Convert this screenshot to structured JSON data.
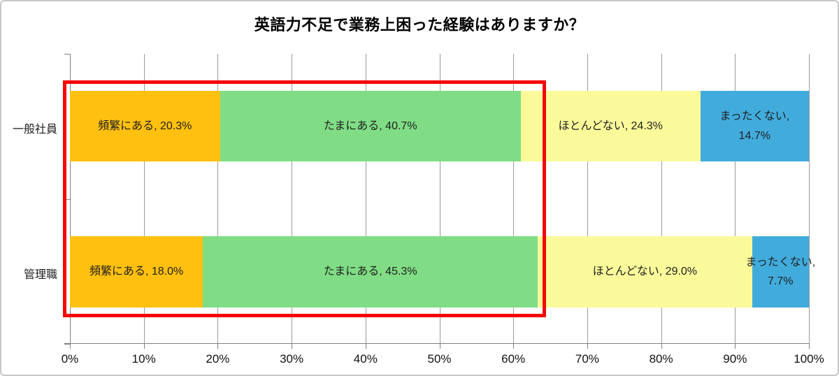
{
  "title": "英語力不足で業務上困った経験はありますか？",
  "colors": {
    "orange": "#ffc010",
    "green": "#80dd85",
    "yellow": "#fafa9b",
    "blue": "#41acdc",
    "highlight_red": "#f40606",
    "gridline": "#9b9b9b",
    "axis": "#808080"
  },
  "chart_data": {
    "type": "bar",
    "orientation": "horizontal",
    "stacked": true,
    "title": "英語力不足で業務上困った経験はありますか？",
    "xlim": [
      0,
      100
    ],
    "grid": true,
    "x_ticks": [
      "0%",
      "10%",
      "20%",
      "30%",
      "40%",
      "50%",
      "60%",
      "70%",
      "80%",
      "90%",
      "100%"
    ],
    "categories": [
      "一般社員",
      "管理職"
    ],
    "legend": "none (labels inside segments)",
    "series": [
      {
        "name": "頻繁にある",
        "color_key": "orange",
        "values": [
          20.3,
          18.0
        ]
      },
      {
        "name": "たまにある",
        "color_key": "green",
        "values": [
          40.7,
          45.3
        ]
      },
      {
        "name": "ほとんどない",
        "color_key": "yellow",
        "values": [
          24.3,
          29.0
        ]
      },
      {
        "name": "まったくない",
        "color_key": "blue",
        "values": [
          14.7,
          7.7
        ]
      }
    ],
    "bars": [
      {
        "category": "一般社員",
        "segments": [
          {
            "name": "頻繁にある",
            "value": 20.3,
            "color_key": "orange",
            "label_lines": [
              "頻繁にある, 20.3%"
            ]
          },
          {
            "name": "たまにある",
            "value": 40.7,
            "color_key": "green",
            "label_lines": [
              "たまにある, 40.7%"
            ]
          },
          {
            "name": "ほとんどない",
            "value": 24.3,
            "color_key": "yellow",
            "label_lines": [
              "ほとんどない, 24.3%"
            ]
          },
          {
            "name": "まったくない",
            "value": 14.7,
            "color_key": "blue",
            "label_lines": [
              "まったくない,",
              "14.7%"
            ]
          }
        ]
      },
      {
        "category": "管理職",
        "segments": [
          {
            "name": "頻繁にある",
            "value": 18.0,
            "color_key": "orange",
            "label_lines": [
              "頻繁にある, 18.0%"
            ]
          },
          {
            "name": "たまにある",
            "value": 45.3,
            "color_key": "green",
            "label_lines": [
              "たまにある, 45.3%"
            ]
          },
          {
            "name": "ほとんどない",
            "value": 29.0,
            "color_key": "yellow",
            "label_lines": [
              "ほとんどない, 29.0%"
            ]
          },
          {
            "name": "まったくない",
            "value": 7.7,
            "color_key": "blue",
            "label_lines": [
              "まったくない,",
              "7.7%"
            ]
          }
        ]
      }
    ],
    "annotation": {
      "shape": "red-rectangle",
      "meaning": "highlights 頻繁にある + たまにある segments of both bars"
    }
  }
}
